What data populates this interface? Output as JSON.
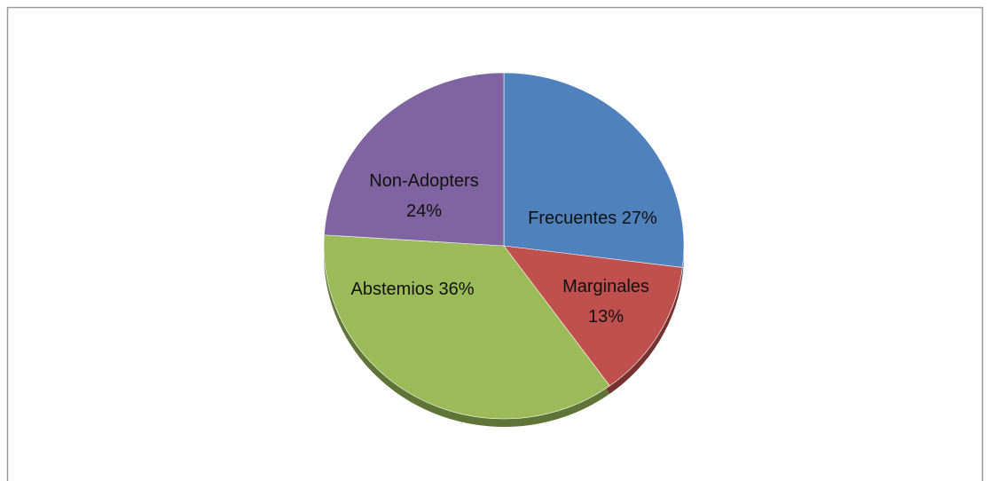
{
  "chart_data": {
    "type": "pie",
    "categories": [
      "Frecuentes",
      "Marginales",
      "Abstemios",
      "Non-Adopters"
    ],
    "values": [
      27,
      13,
      36,
      24
    ],
    "value_labels": [
      "27%",
      "13%",
      "36%",
      "24%"
    ],
    "colors": [
      "#4f81bd",
      "#c0504d",
      "#9bbb59",
      "#8064a2"
    ]
  }
}
